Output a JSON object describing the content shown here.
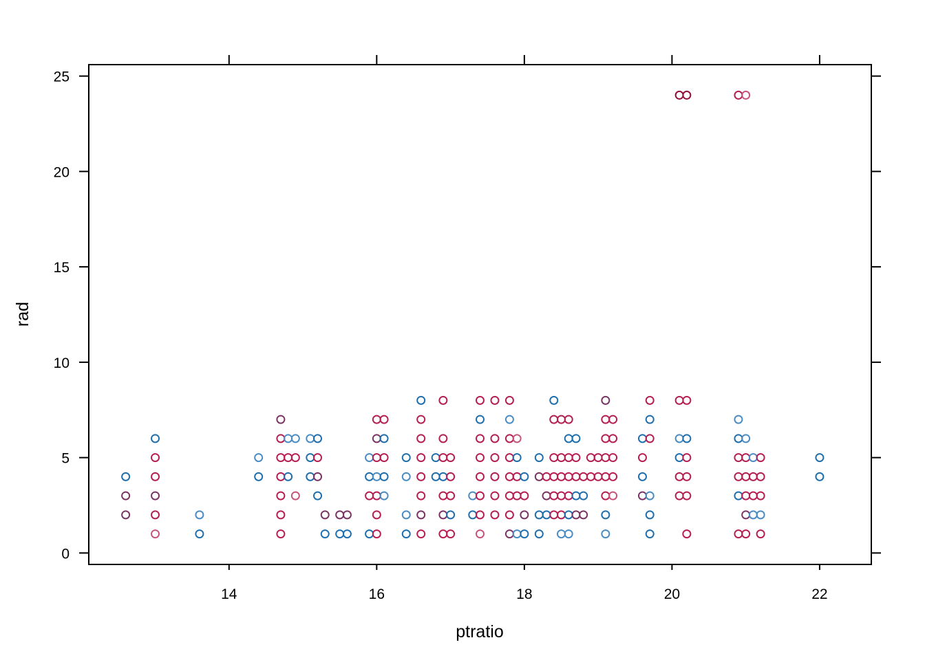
{
  "chart_data": {
    "type": "scatter",
    "title": "",
    "xlabel": "ptratio",
    "ylabel": "rad",
    "xlim": [
      12.1,
      22.7
    ],
    "ylim": [
      -0.6,
      25.6
    ],
    "xticks": [
      14,
      16,
      18,
      20,
      22
    ],
    "yticks": [
      0,
      5,
      10,
      15,
      20,
      25
    ],
    "xtick_labels": [
      "14",
      "16",
      "18",
      "20",
      "22"
    ],
    "ytick_labels": [
      "0",
      "5",
      "10",
      "15",
      "20",
      "25"
    ],
    "grid": false,
    "marker": "open-circle",
    "colors": {
      "blue": "#1f6fae",
      "light_blue": "#4a8cc4",
      "purple": "#7a3565",
      "red": "#b51f53",
      "dark_red": "#960f3a",
      "pink": "#c4567a"
    },
    "points": [
      {
        "x": 12.6,
        "y": 4,
        "c": "blue"
      },
      {
        "x": 12.6,
        "y": 3,
        "c": "purple"
      },
      {
        "x": 12.6,
        "y": 2,
        "c": "purple"
      },
      {
        "x": 13.0,
        "y": 6,
        "c": "blue"
      },
      {
        "x": 13.0,
        "y": 5,
        "c": "red"
      },
      {
        "x": 13.0,
        "y": 4,
        "c": "red"
      },
      {
        "x": 13.0,
        "y": 3,
        "c": "purple"
      },
      {
        "x": 13.0,
        "y": 2,
        "c": "red"
      },
      {
        "x": 13.0,
        "y": 1,
        "c": "pink"
      },
      {
        "x": 13.6,
        "y": 2,
        "c": "light_blue"
      },
      {
        "x": 13.6,
        "y": 1,
        "c": "blue"
      },
      {
        "x": 14.4,
        "y": 5,
        "c": "light_blue"
      },
      {
        "x": 14.4,
        "y": 4,
        "c": "blue"
      },
      {
        "x": 14.7,
        "y": 7,
        "c": "purple"
      },
      {
        "x": 14.7,
        "y": 6,
        "c": "red"
      },
      {
        "x": 14.7,
        "y": 5,
        "c": "red"
      },
      {
        "x": 14.7,
        "y": 4,
        "c": "red"
      },
      {
        "x": 14.7,
        "y": 3,
        "c": "red"
      },
      {
        "x": 14.7,
        "y": 2,
        "c": "red"
      },
      {
        "x": 14.7,
        "y": 1,
        "c": "red"
      },
      {
        "x": 14.8,
        "y": 6,
        "c": "light_blue"
      },
      {
        "x": 14.8,
        "y": 5,
        "c": "red"
      },
      {
        "x": 14.8,
        "y": 4,
        "c": "blue"
      },
      {
        "x": 14.9,
        "y": 6,
        "c": "light_blue"
      },
      {
        "x": 14.9,
        "y": 5,
        "c": "red"
      },
      {
        "x": 14.9,
        "y": 3,
        "c": "pink"
      },
      {
        "x": 15.1,
        "y": 6,
        "c": "light_blue"
      },
      {
        "x": 15.1,
        "y": 5,
        "c": "blue"
      },
      {
        "x": 15.1,
        "y": 4,
        "c": "blue"
      },
      {
        "x": 15.2,
        "y": 6,
        "c": "blue"
      },
      {
        "x": 15.2,
        "y": 5,
        "c": "red"
      },
      {
        "x": 15.2,
        "y": 4,
        "c": "purple"
      },
      {
        "x": 15.2,
        "y": 3,
        "c": "blue"
      },
      {
        "x": 15.3,
        "y": 2,
        "c": "purple"
      },
      {
        "x": 15.3,
        "y": 1,
        "c": "blue"
      },
      {
        "x": 15.5,
        "y": 2,
        "c": "purple"
      },
      {
        "x": 15.5,
        "y": 1,
        "c": "blue"
      },
      {
        "x": 15.6,
        "y": 2,
        "c": "purple"
      },
      {
        "x": 15.6,
        "y": 1,
        "c": "blue"
      },
      {
        "x": 15.9,
        "y": 5,
        "c": "light_blue"
      },
      {
        "x": 15.9,
        "y": 4,
        "c": "blue"
      },
      {
        "x": 15.9,
        "y": 3,
        "c": "red"
      },
      {
        "x": 15.9,
        "y": 1,
        "c": "blue"
      },
      {
        "x": 16.0,
        "y": 7,
        "c": "red"
      },
      {
        "x": 16.0,
        "y": 6,
        "c": "purple"
      },
      {
        "x": 16.0,
        "y": 5,
        "c": "red"
      },
      {
        "x": 16.0,
        "y": 4,
        "c": "light_blue"
      },
      {
        "x": 16.0,
        "y": 3,
        "c": "red"
      },
      {
        "x": 16.0,
        "y": 2,
        "c": "red"
      },
      {
        "x": 16.0,
        "y": 1,
        "c": "red"
      },
      {
        "x": 16.1,
        "y": 7,
        "c": "red"
      },
      {
        "x": 16.1,
        "y": 6,
        "c": "blue"
      },
      {
        "x": 16.1,
        "y": 5,
        "c": "red"
      },
      {
        "x": 16.1,
        "y": 4,
        "c": "blue"
      },
      {
        "x": 16.1,
        "y": 3,
        "c": "light_blue"
      },
      {
        "x": 16.4,
        "y": 5,
        "c": "blue"
      },
      {
        "x": 16.4,
        "y": 4,
        "c": "light_blue"
      },
      {
        "x": 16.4,
        "y": 2,
        "c": "light_blue"
      },
      {
        "x": 16.4,
        "y": 1,
        "c": "blue"
      },
      {
        "x": 16.6,
        "y": 8,
        "c": "blue"
      },
      {
        "x": 16.6,
        "y": 7,
        "c": "red"
      },
      {
        "x": 16.6,
        "y": 6,
        "c": "red"
      },
      {
        "x": 16.6,
        "y": 5,
        "c": "red"
      },
      {
        "x": 16.6,
        "y": 4,
        "c": "red"
      },
      {
        "x": 16.6,
        "y": 3,
        "c": "red"
      },
      {
        "x": 16.6,
        "y": 2,
        "c": "purple"
      },
      {
        "x": 16.6,
        "y": 1,
        "c": "red"
      },
      {
        "x": 16.8,
        "y": 5,
        "c": "blue"
      },
      {
        "x": 16.8,
        "y": 4,
        "c": "blue"
      },
      {
        "x": 16.9,
        "y": 8,
        "c": "red"
      },
      {
        "x": 16.9,
        "y": 6,
        "c": "red"
      },
      {
        "x": 16.9,
        "y": 5,
        "c": "red"
      },
      {
        "x": 16.9,
        "y": 4,
        "c": "blue"
      },
      {
        "x": 16.9,
        "y": 3,
        "c": "red"
      },
      {
        "x": 16.9,
        "y": 2,
        "c": "purple"
      },
      {
        "x": 16.9,
        "y": 1,
        "c": "red"
      },
      {
        "x": 17.0,
        "y": 5,
        "c": "red"
      },
      {
        "x": 17.0,
        "y": 4,
        "c": "red"
      },
      {
        "x": 17.0,
        "y": 3,
        "c": "red"
      },
      {
        "x": 17.0,
        "y": 2,
        "c": "blue"
      },
      {
        "x": 17.0,
        "y": 1,
        "c": "red"
      },
      {
        "x": 17.3,
        "y": 3,
        "c": "light_blue"
      },
      {
        "x": 17.3,
        "y": 2,
        "c": "blue"
      },
      {
        "x": 17.4,
        "y": 8,
        "c": "red"
      },
      {
        "x": 17.4,
        "y": 7,
        "c": "blue"
      },
      {
        "x": 17.4,
        "y": 6,
        "c": "red"
      },
      {
        "x": 17.4,
        "y": 5,
        "c": "red"
      },
      {
        "x": 17.4,
        "y": 4,
        "c": "red"
      },
      {
        "x": 17.4,
        "y": 3,
        "c": "red"
      },
      {
        "x": 17.4,
        "y": 2,
        "c": "red"
      },
      {
        "x": 17.4,
        "y": 1,
        "c": "pink"
      },
      {
        "x": 17.6,
        "y": 8,
        "c": "red"
      },
      {
        "x": 17.6,
        "y": 6,
        "c": "red"
      },
      {
        "x": 17.6,
        "y": 5,
        "c": "red"
      },
      {
        "x": 17.6,
        "y": 4,
        "c": "red"
      },
      {
        "x": 17.6,
        "y": 3,
        "c": "red"
      },
      {
        "x": 17.6,
        "y": 2,
        "c": "red"
      },
      {
        "x": 17.8,
        "y": 8,
        "c": "red"
      },
      {
        "x": 17.8,
        "y": 7,
        "c": "light_blue"
      },
      {
        "x": 17.8,
        "y": 6,
        "c": "red"
      },
      {
        "x": 17.8,
        "y": 5,
        "c": "red"
      },
      {
        "x": 17.8,
        "y": 4,
        "c": "red"
      },
      {
        "x": 17.8,
        "y": 3,
        "c": "red"
      },
      {
        "x": 17.8,
        "y": 2,
        "c": "red"
      },
      {
        "x": 17.8,
        "y": 1,
        "c": "purple"
      },
      {
        "x": 17.9,
        "y": 6,
        "c": "pink"
      },
      {
        "x": 17.9,
        "y": 5,
        "c": "blue"
      },
      {
        "x": 17.9,
        "y": 4,
        "c": "red"
      },
      {
        "x": 17.9,
        "y": 3,
        "c": "red"
      },
      {
        "x": 17.9,
        "y": 1,
        "c": "light_blue"
      },
      {
        "x": 18.0,
        "y": 4,
        "c": "blue"
      },
      {
        "x": 18.0,
        "y": 3,
        "c": "red"
      },
      {
        "x": 18.0,
        "y": 2,
        "c": "purple"
      },
      {
        "x": 18.0,
        "y": 1,
        "c": "blue"
      },
      {
        "x": 18.2,
        "y": 5,
        "c": "blue"
      },
      {
        "x": 18.2,
        "y": 4,
        "c": "purple"
      },
      {
        "x": 18.2,
        "y": 2,
        "c": "blue"
      },
      {
        "x": 18.2,
        "y": 1,
        "c": "blue"
      },
      {
        "x": 18.3,
        "y": 4,
        "c": "red"
      },
      {
        "x": 18.3,
        "y": 3,
        "c": "purple"
      },
      {
        "x": 18.3,
        "y": 2,
        "c": "blue"
      },
      {
        "x": 18.4,
        "y": 8,
        "c": "blue"
      },
      {
        "x": 18.4,
        "y": 7,
        "c": "red"
      },
      {
        "x": 18.4,
        "y": 5,
        "c": "red"
      },
      {
        "x": 18.4,
        "y": 4,
        "c": "red"
      },
      {
        "x": 18.4,
        "y": 3,
        "c": "red"
      },
      {
        "x": 18.4,
        "y": 2,
        "c": "red"
      },
      {
        "x": 18.5,
        "y": 7,
        "c": "red"
      },
      {
        "x": 18.5,
        "y": 5,
        "c": "red"
      },
      {
        "x": 18.5,
        "y": 4,
        "c": "red"
      },
      {
        "x": 18.5,
        "y": 3,
        "c": "red"
      },
      {
        "x": 18.5,
        "y": 2,
        "c": "red"
      },
      {
        "x": 18.5,
        "y": 1,
        "c": "light_blue"
      },
      {
        "x": 18.6,
        "y": 7,
        "c": "red"
      },
      {
        "x": 18.6,
        "y": 6,
        "c": "blue"
      },
      {
        "x": 18.6,
        "y": 5,
        "c": "red"
      },
      {
        "x": 18.6,
        "y": 4,
        "c": "red"
      },
      {
        "x": 18.6,
        "y": 3,
        "c": "red"
      },
      {
        "x": 18.6,
        "y": 2,
        "c": "blue"
      },
      {
        "x": 18.6,
        "y": 1,
        "c": "light_blue"
      },
      {
        "x": 18.7,
        "y": 6,
        "c": "blue"
      },
      {
        "x": 18.7,
        "y": 5,
        "c": "red"
      },
      {
        "x": 18.7,
        "y": 4,
        "c": "red"
      },
      {
        "x": 18.7,
        "y": 3,
        "c": "blue"
      },
      {
        "x": 18.7,
        "y": 2,
        "c": "purple"
      },
      {
        "x": 18.8,
        "y": 4,
        "c": "red"
      },
      {
        "x": 18.8,
        "y": 3,
        "c": "blue"
      },
      {
        "x": 18.8,
        "y": 2,
        "c": "purple"
      },
      {
        "x": 18.9,
        "y": 5,
        "c": "red"
      },
      {
        "x": 18.9,
        "y": 4,
        "c": "red"
      },
      {
        "x": 19.0,
        "y": 5,
        "c": "red"
      },
      {
        "x": 19.0,
        "y": 4,
        "c": "red"
      },
      {
        "x": 19.1,
        "y": 8,
        "c": "purple"
      },
      {
        "x": 19.1,
        "y": 7,
        "c": "red"
      },
      {
        "x": 19.1,
        "y": 6,
        "c": "red"
      },
      {
        "x": 19.1,
        "y": 5,
        "c": "red"
      },
      {
        "x": 19.1,
        "y": 4,
        "c": "red"
      },
      {
        "x": 19.1,
        "y": 3,
        "c": "red"
      },
      {
        "x": 19.1,
        "y": 2,
        "c": "blue"
      },
      {
        "x": 19.1,
        "y": 1,
        "c": "light_blue"
      },
      {
        "x": 19.2,
        "y": 7,
        "c": "red"
      },
      {
        "x": 19.2,
        "y": 6,
        "c": "red"
      },
      {
        "x": 19.2,
        "y": 5,
        "c": "red"
      },
      {
        "x": 19.2,
        "y": 4,
        "c": "red"
      },
      {
        "x": 19.2,
        "y": 3,
        "c": "pink"
      },
      {
        "x": 19.6,
        "y": 6,
        "c": "blue"
      },
      {
        "x": 19.6,
        "y": 5,
        "c": "red"
      },
      {
        "x": 19.6,
        "y": 4,
        "c": "blue"
      },
      {
        "x": 19.6,
        "y": 3,
        "c": "purple"
      },
      {
        "x": 19.7,
        "y": 8,
        "c": "red"
      },
      {
        "x": 19.7,
        "y": 7,
        "c": "blue"
      },
      {
        "x": 19.7,
        "y": 6,
        "c": "red"
      },
      {
        "x": 19.7,
        "y": 3,
        "c": "light_blue"
      },
      {
        "x": 19.7,
        "y": 2,
        "c": "blue"
      },
      {
        "x": 19.7,
        "y": 1,
        "c": "blue"
      },
      {
        "x": 20.1,
        "y": 24,
        "c": "dark_red"
      },
      {
        "x": 20.1,
        "y": 8,
        "c": "red"
      },
      {
        "x": 20.1,
        "y": 6,
        "c": "light_blue"
      },
      {
        "x": 20.1,
        "y": 5,
        "c": "blue"
      },
      {
        "x": 20.1,
        "y": 4,
        "c": "red"
      },
      {
        "x": 20.1,
        "y": 3,
        "c": "red"
      },
      {
        "x": 20.2,
        "y": 24,
        "c": "dark_red"
      },
      {
        "x": 20.2,
        "y": 8,
        "c": "red"
      },
      {
        "x": 20.2,
        "y": 6,
        "c": "blue"
      },
      {
        "x": 20.2,
        "y": 5,
        "c": "red"
      },
      {
        "x": 20.2,
        "y": 4,
        "c": "red"
      },
      {
        "x": 20.2,
        "y": 3,
        "c": "red"
      },
      {
        "x": 20.2,
        "y": 1,
        "c": "red"
      },
      {
        "x": 20.9,
        "y": 24,
        "c": "red"
      },
      {
        "x": 20.9,
        "y": 7,
        "c": "light_blue"
      },
      {
        "x": 20.9,
        "y": 6,
        "c": "blue"
      },
      {
        "x": 20.9,
        "y": 5,
        "c": "red"
      },
      {
        "x": 20.9,
        "y": 4,
        "c": "red"
      },
      {
        "x": 20.9,
        "y": 3,
        "c": "blue"
      },
      {
        "x": 20.9,
        "y": 1,
        "c": "red"
      },
      {
        "x": 21.0,
        "y": 24,
        "c": "pink"
      },
      {
        "x": 21.0,
        "y": 6,
        "c": "light_blue"
      },
      {
        "x": 21.0,
        "y": 5,
        "c": "red"
      },
      {
        "x": 21.0,
        "y": 4,
        "c": "red"
      },
      {
        "x": 21.0,
        "y": 3,
        "c": "red"
      },
      {
        "x": 21.0,
        "y": 2,
        "c": "purple"
      },
      {
        "x": 21.0,
        "y": 1,
        "c": "red"
      },
      {
        "x": 21.1,
        "y": 5,
        "c": "light_blue"
      },
      {
        "x": 21.1,
        "y": 4,
        "c": "red"
      },
      {
        "x": 21.1,
        "y": 3,
        "c": "red"
      },
      {
        "x": 21.1,
        "y": 2,
        "c": "light_blue"
      },
      {
        "x": 21.2,
        "y": 5,
        "c": "red"
      },
      {
        "x": 21.2,
        "y": 4,
        "c": "red"
      },
      {
        "x": 21.2,
        "y": 3,
        "c": "red"
      },
      {
        "x": 21.2,
        "y": 2,
        "c": "light_blue"
      },
      {
        "x": 21.2,
        "y": 1,
        "c": "red"
      },
      {
        "x": 22.0,
        "y": 5,
        "c": "blue"
      },
      {
        "x": 22.0,
        "y": 4,
        "c": "blue"
      }
    ]
  }
}
